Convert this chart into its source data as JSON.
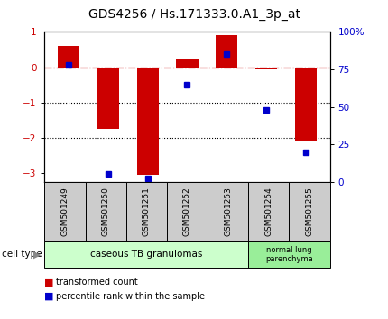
{
  "title": "GDS4256 / Hs.171333.0.A1_3p_at",
  "samples": [
    "GSM501249",
    "GSM501250",
    "GSM501251",
    "GSM501252",
    "GSM501253",
    "GSM501254",
    "GSM501255"
  ],
  "transformed_count": [
    0.6,
    -1.75,
    -3.05,
    0.25,
    0.9,
    -0.05,
    -2.1
  ],
  "percentile_rank": [
    78,
    5,
    2,
    65,
    85,
    48,
    20
  ],
  "ylim_left": [
    -3.25,
    1.0
  ],
  "ylim_right": [
    0,
    100
  ],
  "yticks_left": [
    -3,
    -2,
    -1,
    0,
    1
  ],
  "yticks_right": [
    0,
    25,
    50,
    75,
    100
  ],
  "ytick_labels_right": [
    "0",
    "25",
    "50",
    "75",
    "100%"
  ],
  "bar_color": "#cc0000",
  "marker_color": "#0000cc",
  "hline_color": "#cc0000",
  "dotted_line_color": "#000000",
  "cell_type_label": "cell type",
  "group1_label": "caseous TB granulomas",
  "group2_label": "normal lung\nparenchyma",
  "group1_count": 5,
  "group2_count": 2,
  "group1_color": "#ccffcc",
  "group2_color": "#99ee99",
  "xticklabel_bg": "#cccccc",
  "legend_bar_label": "transformed count",
  "legend_marker_label": "percentile rank within the sample",
  "bar_width": 0.55,
  "title_fontsize": 10,
  "tick_fontsize": 7.5,
  "label_fontsize": 7.5,
  "sample_fontsize": 6.5
}
